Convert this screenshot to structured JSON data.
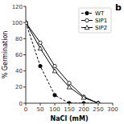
{
  "chart_data": {
    "type": "line",
    "title": "b",
    "x_label": "NaCl (mM)",
    "y_label": "% Germination",
    "x": [
      0,
      50,
      100,
      150,
      200,
      250
    ],
    "xlim": [
      0,
      300
    ],
    "ylim": [
      0,
      120
    ],
    "xticks": [
      0,
      50,
      100,
      150,
      200,
      250,
      300
    ],
    "yticks": [
      0,
      20,
      40,
      60,
      80,
      100,
      120
    ],
    "grid": false,
    "legend": "upper-right",
    "series": [
      {
        "name": "WT",
        "color": "#000000",
        "line_style": "dashed",
        "marker": "circle-filled",
        "values": [
          100,
          46,
          10,
          0,
          0,
          0
        ]
      },
      {
        "name": "SIP1",
        "color": "#000000",
        "line_style": "solid",
        "marker": "circle-open",
        "values": [
          100,
          75,
          46,
          25,
          8,
          0
        ]
      },
      {
        "name": "SIP2",
        "color": "#000000",
        "line_style": "solid",
        "marker": "triangle-open",
        "values": [
          100,
          68,
          40,
          20,
          7,
          0
        ]
      }
    ]
  }
}
